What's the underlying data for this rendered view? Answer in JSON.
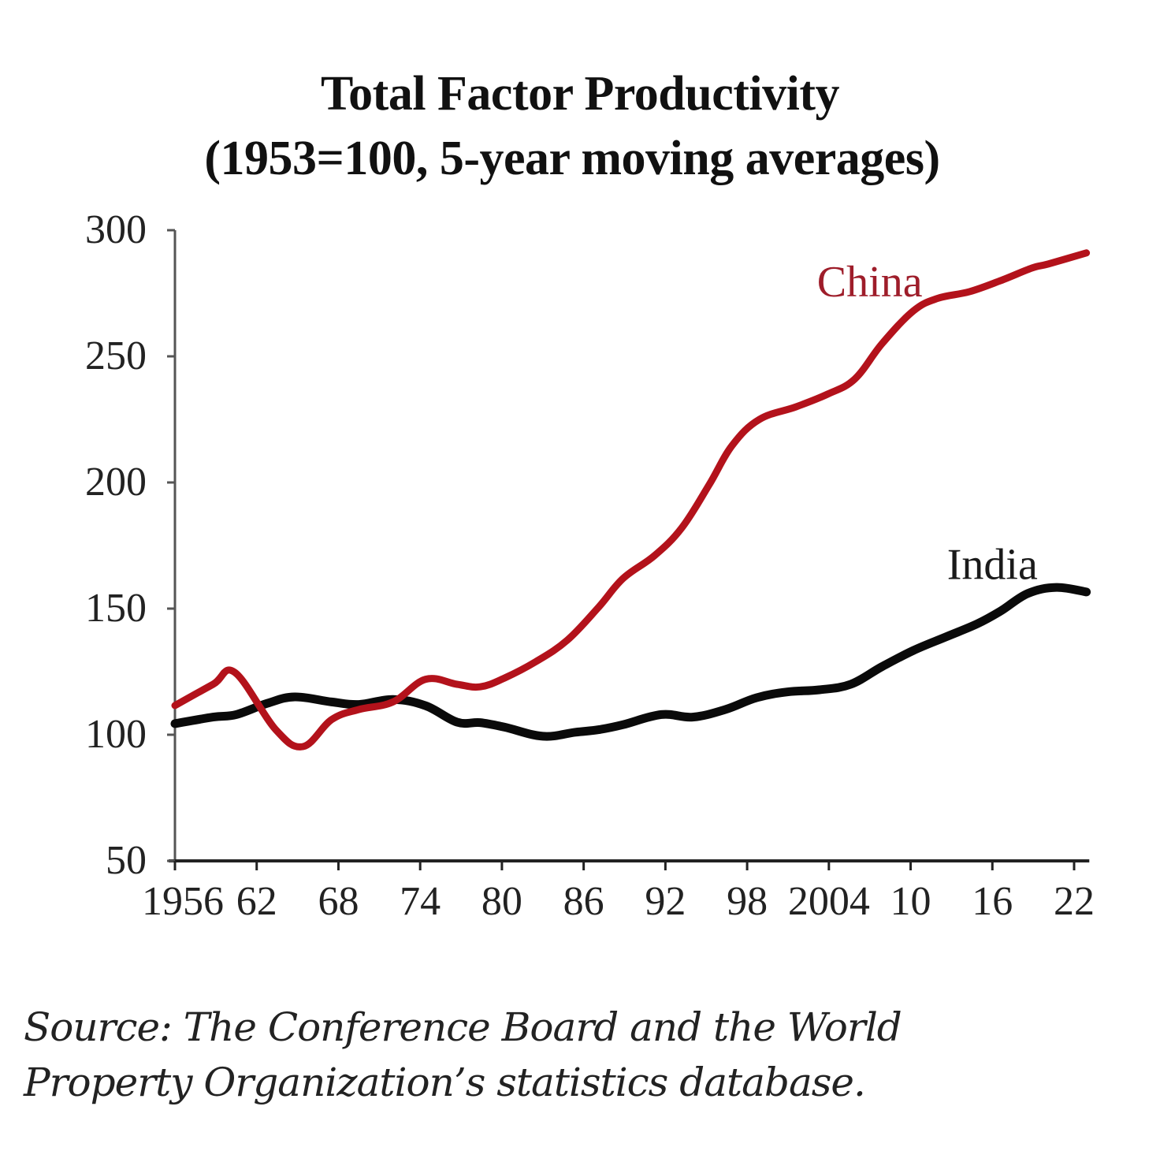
{
  "chart_data": {
    "type": "line",
    "title": "Total Factor Productivity",
    "subtitle": "(1953=100, 5-year moving averages)",
    "xlabel": "",
    "ylabel": "",
    "xlim": [
      1956,
      2023
    ],
    "ylim": [
      50,
      300
    ],
    "grid": false,
    "legend": "inline labels",
    "y_ticks": [
      50,
      100,
      150,
      200,
      250,
      300
    ],
    "y_tick_labels": [
      "50",
      "100",
      "150",
      "200",
      "250",
      "300"
    ],
    "x_ticks": [
      1956,
      1962,
      1968,
      1974,
      1980,
      1986,
      1992,
      1998,
      2004,
      2010,
      2016,
      2022
    ],
    "x_tick_labels": [
      "1956",
      "62",
      "68",
      "74",
      "80",
      "86",
      "92",
      "98",
      "2004",
      "10",
      "16",
      "22"
    ],
    "series": [
      {
        "name": "China",
        "color": "#b3121b",
        "x": [
          1956,
          1958.8,
          1960.4,
          1963.4,
          1965.4,
          1967.5,
          1969.5,
          1972,
          1974.4,
          1976.7,
          1978.4,
          1980.2,
          1982.5,
          1984.8,
          1987.1,
          1988.9,
          1991.2,
          1993.2,
          1995.2,
          1996.9,
          1998.9,
          2001.6,
          2003.9,
          2005.9,
          2007.9,
          2010.2,
          2012,
          2014.3,
          2016.6,
          2018.9,
          2020.1,
          2022.9
        ],
        "values": [
          111.6,
          120,
          124.7,
          102,
          95.3,
          106,
          110,
          113,
          122,
          120,
          119,
          122.5,
          129,
          137.5,
          150.6,
          162,
          171,
          182,
          199,
          214.7,
          225,
          230,
          235,
          241,
          255,
          268,
          273,
          275.6,
          280,
          285,
          286.6,
          291
        ]
      },
      {
        "name": "India",
        "color": "#0a0a0a",
        "x": [
          1956,
          1958.8,
          1960.5,
          1962.8,
          1964.8,
          1967.5,
          1969.5,
          1972,
          1974.4,
          1976.7,
          1978.4,
          1980.2,
          1983,
          1985.4,
          1987.1,
          1988.9,
          1991.7,
          1994,
          1996.4,
          1998.7,
          2001,
          2003.3,
          2005.6,
          2007.9,
          2010.2,
          2012.6,
          2014.9,
          2016.6,
          2018.6,
          2020.7,
          2022.9
        ],
        "values": [
          104.4,
          107,
          108,
          112.5,
          115,
          113,
          112,
          114,
          111.5,
          105,
          104.8,
          103,
          99.4,
          101,
          102,
          104,
          108,
          107,
          110,
          114.7,
          117,
          117.8,
          120,
          127,
          133.4,
          138.8,
          144,
          149,
          156,
          158.4,
          156.6
        ]
      }
    ],
    "annotations": [
      {
        "text": "China",
        "series": "China",
        "at_x": 2007,
        "at_y": 280
      },
      {
        "text": "India",
        "series": "India",
        "at_x": 2016,
        "at_y": 168
      }
    ]
  },
  "source_note": {
    "line1": "Source: The Conference Board and the World",
    "line2": "Property Organization’s statistics database."
  }
}
